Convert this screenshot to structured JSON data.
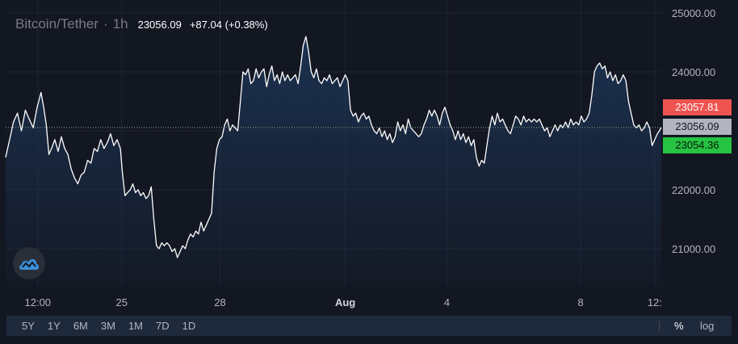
{
  "header": {
    "symbol": "Bitcoin/Tether",
    "separator": "·",
    "interval": "1h",
    "last_price": "23056.09",
    "change": "+87.04 (+0.38%)"
  },
  "price_badges": {
    "ask": "23057.81",
    "last": "23056.09",
    "bid": "23054.36"
  },
  "ranges": [
    "5Y",
    "1Y",
    "6M",
    "3M",
    "1M",
    "7D",
    "1D"
  ],
  "scale_buttons": {
    "percent": "%",
    "log": "log"
  },
  "logo_icon": "tradingview-cloud-icon",
  "colors": {
    "background": "#131722",
    "line": "#ffffff",
    "ask": "#ef5350",
    "last": "#b2b5be",
    "bid": "#26c241",
    "bottom_bar": "#1e2a3c"
  },
  "chart_data": {
    "type": "area",
    "ylim": [
      20600,
      25050
    ],
    "y_ticks": [
      25000,
      24000,
      23000,
      22000,
      21000
    ],
    "y_tick_labels": [
      "25000.00",
      "24000.00",
      "",
      "22000.00",
      "21000.00"
    ],
    "x_ticks": [
      {
        "label": "12:00",
        "x": 0.049,
        "bold": false
      },
      {
        "label": "25",
        "x": 0.177,
        "bold": false
      },
      {
        "label": "28",
        "x": 0.327,
        "bold": false
      },
      {
        "label": "Aug",
        "x": 0.518,
        "bold": true
      },
      {
        "label": "4",
        "x": 0.673,
        "bold": false
      },
      {
        "label": "8",
        "x": 0.877,
        "bold": false
      },
      {
        "label": "12:",
        "x": 0.99,
        "bold": false
      }
    ],
    "last_value": 23056.09,
    "series": [
      {
        "points": [
          [
            0.0,
            22550
          ],
          [
            0.006,
            22850
          ],
          [
            0.012,
            23150
          ],
          [
            0.018,
            23300
          ],
          [
            0.024,
            23000
          ],
          [
            0.03,
            23350
          ],
          [
            0.036,
            23200
          ],
          [
            0.042,
            23050
          ],
          [
            0.048,
            23400
          ],
          [
            0.054,
            23650
          ],
          [
            0.058,
            23400
          ],
          [
            0.062,
            23100
          ],
          [
            0.066,
            22600
          ],
          [
            0.07,
            22700
          ],
          [
            0.075,
            22850
          ],
          [
            0.08,
            22650
          ],
          [
            0.085,
            22900
          ],
          [
            0.09,
            22700
          ],
          [
            0.095,
            22600
          ],
          [
            0.1,
            22350
          ],
          [
            0.105,
            22200
          ],
          [
            0.11,
            22100
          ],
          [
            0.115,
            22250
          ],
          [
            0.12,
            22300
          ],
          [
            0.125,
            22500
          ],
          [
            0.13,
            22450
          ],
          [
            0.135,
            22700
          ],
          [
            0.14,
            22650
          ],
          [
            0.145,
            22850
          ],
          [
            0.15,
            22700
          ],
          [
            0.155,
            22800
          ],
          [
            0.16,
            22950
          ],
          [
            0.165,
            22750
          ],
          [
            0.17,
            22850
          ],
          [
            0.175,
            22700
          ],
          [
            0.178,
            22300
          ],
          [
            0.182,
            21900
          ],
          [
            0.186,
            21950
          ],
          [
            0.19,
            22000
          ],
          [
            0.194,
            22100
          ],
          [
            0.198,
            21950
          ],
          [
            0.202,
            22000
          ],
          [
            0.206,
            21900
          ],
          [
            0.21,
            21950
          ],
          [
            0.214,
            21850
          ],
          [
            0.218,
            21900
          ],
          [
            0.222,
            22050
          ],
          [
            0.226,
            21500
          ],
          [
            0.23,
            21050
          ],
          [
            0.234,
            21000
          ],
          [
            0.238,
            21100
          ],
          [
            0.242,
            21050
          ],
          [
            0.246,
            21100
          ],
          [
            0.25,
            21050
          ],
          [
            0.254,
            20950
          ],
          [
            0.258,
            21000
          ],
          [
            0.262,
            20850
          ],
          [
            0.266,
            20950
          ],
          [
            0.27,
            21050
          ],
          [
            0.274,
            21000
          ],
          [
            0.278,
            21150
          ],
          [
            0.282,
            21250
          ],
          [
            0.286,
            21200
          ],
          [
            0.29,
            21300
          ],
          [
            0.294,
            21250
          ],
          [
            0.298,
            21450
          ],
          [
            0.302,
            21300
          ],
          [
            0.306,
            21400
          ],
          [
            0.31,
            21500
          ],
          [
            0.314,
            21600
          ],
          [
            0.318,
            22300
          ],
          [
            0.322,
            22700
          ],
          [
            0.326,
            22850
          ],
          [
            0.33,
            22900
          ],
          [
            0.334,
            23100
          ],
          [
            0.338,
            23200
          ],
          [
            0.342,
            23000
          ],
          [
            0.346,
            23100
          ],
          [
            0.35,
            23050
          ],
          [
            0.354,
            23000
          ],
          [
            0.358,
            23500
          ],
          [
            0.362,
            24000
          ],
          [
            0.366,
            23950
          ],
          [
            0.37,
            24050
          ],
          [
            0.374,
            23800
          ],
          [
            0.378,
            23850
          ],
          [
            0.382,
            24050
          ],
          [
            0.386,
            23900
          ],
          [
            0.39,
            24000
          ],
          [
            0.394,
            24050
          ],
          [
            0.398,
            23750
          ],
          [
            0.402,
            23950
          ],
          [
            0.406,
            24100
          ],
          [
            0.41,
            23850
          ],
          [
            0.414,
            23950
          ],
          [
            0.418,
            23800
          ],
          [
            0.422,
            24000
          ],
          [
            0.426,
            23850
          ],
          [
            0.43,
            23950
          ],
          [
            0.434,
            23850
          ],
          [
            0.438,
            23900
          ],
          [
            0.442,
            23950
          ],
          [
            0.446,
            23800
          ],
          [
            0.45,
            24100
          ],
          [
            0.454,
            24450
          ],
          [
            0.458,
            24600
          ],
          [
            0.462,
            24350
          ],
          [
            0.466,
            24000
          ],
          [
            0.47,
            23900
          ],
          [
            0.474,
            24050
          ],
          [
            0.478,
            23850
          ],
          [
            0.482,
            23800
          ],
          [
            0.486,
            23900
          ],
          [
            0.49,
            23850
          ],
          [
            0.494,
            23950
          ],
          [
            0.498,
            23800
          ],
          [
            0.502,
            23850
          ],
          [
            0.506,
            23900
          ],
          [
            0.51,
            23750
          ],
          [
            0.514,
            23850
          ],
          [
            0.518,
            23950
          ],
          [
            0.522,
            23850
          ],
          [
            0.526,
            23350
          ],
          [
            0.53,
            23250
          ],
          [
            0.534,
            23300
          ],
          [
            0.538,
            23150
          ],
          [
            0.542,
            23250
          ],
          [
            0.546,
            23300
          ],
          [
            0.55,
            23200
          ],
          [
            0.554,
            23250
          ],
          [
            0.558,
            23100
          ],
          [
            0.562,
            23000
          ],
          [
            0.566,
            22950
          ],
          [
            0.57,
            23050
          ],
          [
            0.574,
            22900
          ],
          [
            0.578,
            23000
          ],
          [
            0.582,
            22850
          ],
          [
            0.586,
            22950
          ],
          [
            0.59,
            22800
          ],
          [
            0.594,
            22900
          ],
          [
            0.598,
            23150
          ],
          [
            0.602,
            23000
          ],
          [
            0.606,
            23100
          ],
          [
            0.61,
            22950
          ],
          [
            0.614,
            23200
          ],
          [
            0.618,
            23050
          ],
          [
            0.622,
            23000
          ],
          [
            0.626,
            22950
          ],
          [
            0.63,
            22900
          ],
          [
            0.634,
            22950
          ],
          [
            0.638,
            23100
          ],
          [
            0.642,
            23200
          ],
          [
            0.646,
            23350
          ],
          [
            0.65,
            23250
          ],
          [
            0.654,
            23350
          ],
          [
            0.658,
            23250
          ],
          [
            0.662,
            23100
          ],
          [
            0.666,
            23300
          ],
          [
            0.67,
            23400
          ],
          [
            0.674,
            23250
          ],
          [
            0.678,
            23100
          ],
          [
            0.682,
            23000
          ],
          [
            0.686,
            22850
          ],
          [
            0.69,
            23000
          ],
          [
            0.694,
            22850
          ],
          [
            0.698,
            22950
          ],
          [
            0.702,
            22800
          ],
          [
            0.706,
            22900
          ],
          [
            0.71,
            22750
          ],
          [
            0.714,
            22850
          ],
          [
            0.718,
            22550
          ],
          [
            0.722,
            22400
          ],
          [
            0.726,
            22500
          ],
          [
            0.73,
            22450
          ],
          [
            0.734,
            22750
          ],
          [
            0.738,
            23050
          ],
          [
            0.742,
            23250
          ],
          [
            0.746,
            23100
          ],
          [
            0.75,
            23300
          ],
          [
            0.754,
            23150
          ],
          [
            0.758,
            23200
          ],
          [
            0.762,
            23100
          ],
          [
            0.766,
            23000
          ],
          [
            0.77,
            22950
          ],
          [
            0.774,
            23100
          ],
          [
            0.778,
            23250
          ],
          [
            0.782,
            23200
          ],
          [
            0.786,
            23100
          ],
          [
            0.79,
            23250
          ],
          [
            0.794,
            23150
          ],
          [
            0.798,
            23200
          ],
          [
            0.802,
            23150
          ],
          [
            0.806,
            23200
          ],
          [
            0.81,
            23150
          ],
          [
            0.814,
            23200
          ],
          [
            0.818,
            23100
          ],
          [
            0.822,
            23000
          ],
          [
            0.826,
            23050
          ],
          [
            0.83,
            22900
          ],
          [
            0.834,
            23000
          ],
          [
            0.838,
            23100
          ],
          [
            0.842,
            23000
          ],
          [
            0.846,
            23100
          ],
          [
            0.85,
            23050
          ],
          [
            0.854,
            23150
          ],
          [
            0.858,
            23050
          ],
          [
            0.862,
            23200
          ],
          [
            0.866,
            23100
          ],
          [
            0.87,
            23150
          ],
          [
            0.874,
            23100
          ],
          [
            0.878,
            23250
          ],
          [
            0.882,
            23150
          ],
          [
            0.886,
            23200
          ],
          [
            0.89,
            23300
          ],
          [
            0.894,
            23600
          ],
          [
            0.898,
            24000
          ],
          [
            0.902,
            24100
          ],
          [
            0.906,
            24150
          ],
          [
            0.91,
            24050
          ],
          [
            0.914,
            24100
          ],
          [
            0.918,
            23900
          ],
          [
            0.922,
            24000
          ],
          [
            0.926,
            23850
          ],
          [
            0.93,
            23950
          ],
          [
            0.934,
            23800
          ],
          [
            0.938,
            23850
          ],
          [
            0.942,
            23950
          ],
          [
            0.946,
            23850
          ],
          [
            0.95,
            23500
          ],
          [
            0.954,
            23300
          ],
          [
            0.958,
            23100
          ],
          [
            0.962,
            23050
          ],
          [
            0.966,
            23100
          ],
          [
            0.97,
            23000
          ],
          [
            0.974,
            23050
          ],
          [
            0.978,
            23150
          ],
          [
            0.982,
            23050
          ],
          [
            0.986,
            22750
          ],
          [
            0.99,
            22850
          ],
          [
            0.994,
            22950
          ],
          [
            0.997,
            23000
          ],
          [
            1.0,
            23056
          ]
        ]
      }
    ]
  }
}
